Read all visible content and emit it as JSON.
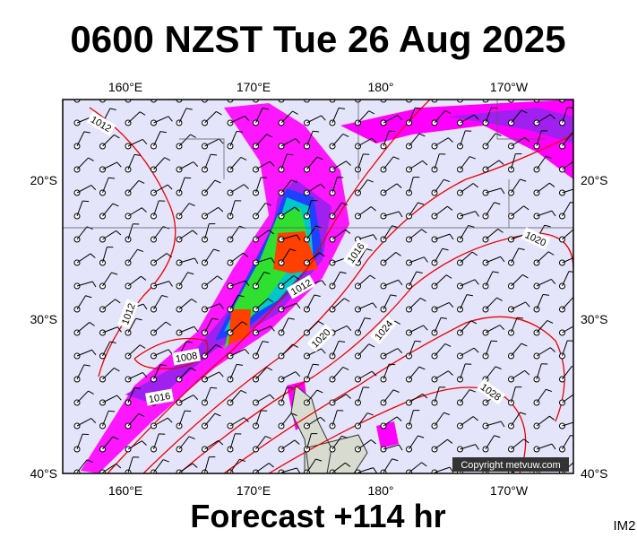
{
  "header": {
    "title": "0600 NZST Tue 26 Aug 2025"
  },
  "map": {
    "lon_labels": [
      "160°E",
      "170°E",
      "180°",
      "170°W"
    ],
    "lat_labels": [
      "20°S",
      "30°S",
      "40°S"
    ],
    "isobar_labels": [
      "1012",
      "1012",
      "1008",
      "1016",
      "1012",
      "1016",
      "1020",
      "1024",
      "1020",
      "1028"
    ],
    "copyright": "Copyright metvuw.com"
  },
  "footer": {
    "forecast": "Forecast +114 hr",
    "code": "IM2"
  }
}
